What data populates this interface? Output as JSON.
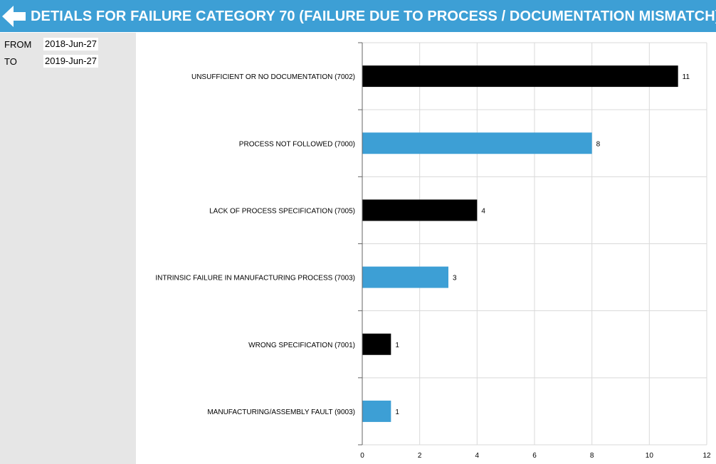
{
  "header": {
    "title": "DETIALS FOR FAILURE CATEGORY 70 (FAILURE DUE TO PROCESS / DOCUMENTATION MISMATCH)"
  },
  "filters": {
    "from_label": "FROM",
    "from_value": "2018-Jun-27",
    "to_label": "TO",
    "to_value": "2019-Jun-27"
  },
  "colors": {
    "header": "#3d9fd5",
    "bar_dark": "#000000",
    "bar_light": "#3d9fd5"
  },
  "chart_data": {
    "type": "bar",
    "orientation": "horizontal",
    "categories": [
      "UNSUFFICIENT OR NO DOCUMENTATION (7002)",
      "PROCESS NOT FOLLOWED (7000)",
      "LACK OF PROCESS SPECIFICATION (7005)",
      "INTRINSIC FAILURE IN MANUFACTURING PROCESS (7003)",
      "WRONG SPECIFICATION (7001)",
      "MANUFACTURING/ASSEMBLY FAULT (9003)"
    ],
    "values": [
      11,
      8,
      4,
      3,
      1,
      1
    ],
    "bar_colors": [
      "#000000",
      "#3d9fd5",
      "#000000",
      "#3d9fd5",
      "#000000",
      "#3d9fd5"
    ],
    "xlim": [
      0,
      12
    ],
    "xticks": [
      0,
      2,
      4,
      6,
      8,
      10,
      12
    ],
    "grid": true,
    "data_labels": true
  }
}
